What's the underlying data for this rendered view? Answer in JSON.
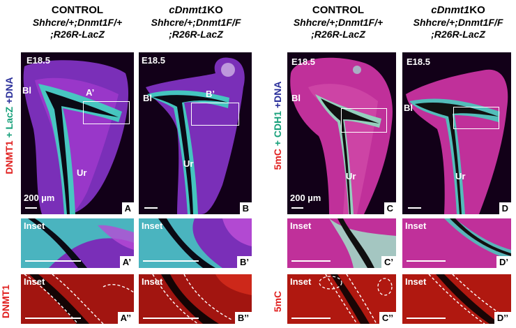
{
  "columns": [
    {
      "title": "CONTROL",
      "genotype_line1": "Shhcre/+;Dnmt1F/+",
      "genotype_line2": ";R26R-LacZ"
    },
    {
      "title_prefix": "c",
      "title_gene": "Dnmt1",
      "title_suffix": "KO",
      "genotype_line1": "Shhcre/+;Dnmt1F/F",
      "genotype_line2": ";R26R-LacZ"
    },
    {
      "title": "CONTROL",
      "genotype_line1": "Shhcre/+;Dnmt1F/+",
      "genotype_line2": ";R26R-LacZ"
    },
    {
      "title_prefix": "c",
      "title_gene": "Dnmt1",
      "title_suffix": "KO",
      "genotype_line1": "Shhcre/+;Dnmt1F/F",
      "genotype_line2": ";R26R-LacZ"
    }
  ],
  "side_labels": {
    "left_main": {
      "part1": "DNMT1",
      "part2": " + ",
      "part3": "LacZ",
      "part4": " +",
      "part5": "DNA"
    },
    "right_main": {
      "part1": "5mC",
      "part2": " + ",
      "part3": "CDH1",
      "part4": " +",
      "part5": "DNA"
    },
    "left_bottom": "DNMT1",
    "right_bottom": "5mC"
  },
  "panels": {
    "A": {
      "label": "A",
      "stage": "E18.5",
      "bl": "Bl",
      "ur": "Ur",
      "inset_tag": "A’",
      "scale": "200 µm"
    },
    "B": {
      "label": "B",
      "stage": "E18.5",
      "bl": "Bl",
      "ur": "Ur",
      "inset_tag": "B’"
    },
    "C": {
      "label": "C",
      "stage": "E18.5",
      "bl": "Bl",
      "ur": "Ur",
      "scale": "200 µm"
    },
    "D": {
      "label": "D",
      "stage": "E18.5",
      "bl": "Bl",
      "ur": "Ur"
    },
    "A1": {
      "label": "A’",
      "inset": "Inset"
    },
    "B1": {
      "label": "B’",
      "inset": "Inset"
    },
    "C1": {
      "label": "C’",
      "inset": "Inset"
    },
    "D1": {
      "label": "D’",
      "inset": "Inset"
    },
    "A2": {
      "label": "A’’",
      "inset": "Inset"
    },
    "B2": {
      "label": "B’’",
      "inset": "Inset"
    },
    "C2": {
      "label": "C’’",
      "inset": "Inset"
    },
    "D2": {
      "label": "D’’",
      "inset": "Inset"
    }
  },
  "colors": {
    "dnmt1": "#e0201f",
    "lacz": "#17a07a",
    "dna": "#2a2f9a",
    "magenta": "#c02fc8",
    "cyan": "#3fd6c0",
    "red_channel": "#d81b12"
  }
}
